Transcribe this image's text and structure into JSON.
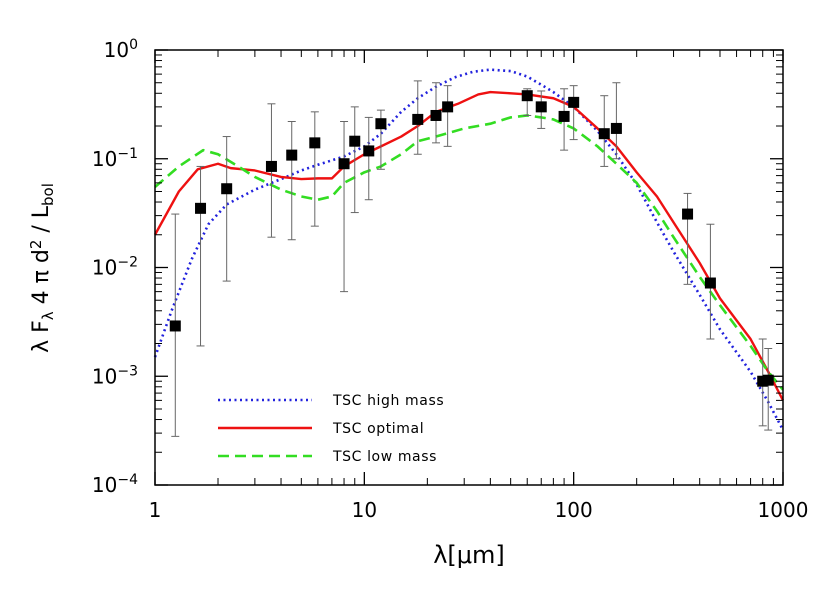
{
  "chart_data": {
    "type": "line",
    "xscale": "log",
    "yscale": "log",
    "xlim": [
      1,
      1000
    ],
    "ylim": [
      0.0001,
      1
    ],
    "xlabel": "λ[μm]",
    "ylabel": "λ F_λ 4 π d² / L_bol",
    "xticks": [
      {
        "value": 1,
        "label": "1"
      },
      {
        "value": 10,
        "label": "10"
      },
      {
        "value": 100,
        "label": "100"
      },
      {
        "value": 1000,
        "label": "1000"
      }
    ],
    "yticks": [
      {
        "value": 0.0001,
        "base": "10",
        "exp": "−4"
      },
      {
        "value": 0.001,
        "base": "10",
        "exp": "−3"
      },
      {
        "value": 0.01,
        "base": "10",
        "exp": "−2"
      },
      {
        "value": 0.1,
        "base": "10",
        "exp": "−1"
      },
      {
        "value": 1,
        "base": "10",
        "exp": "0"
      }
    ],
    "legend_position": "bottom-left",
    "series": [
      {
        "name": "TSC high mass",
        "color": "#2222dd",
        "style": "dotted",
        "points": [
          [
            1,
            0.0015
          ],
          [
            1.2,
            0.004
          ],
          [
            1.5,
            0.012
          ],
          [
            1.8,
            0.025
          ],
          [
            2.2,
            0.038
          ],
          [
            3,
            0.052
          ],
          [
            4,
            0.065
          ],
          [
            5,
            0.078
          ],
          [
            6,
            0.088
          ],
          [
            8,
            0.105
          ],
          [
            10,
            0.13
          ],
          [
            12,
            0.17
          ],
          [
            15,
            0.27
          ],
          [
            18,
            0.36
          ],
          [
            22,
            0.46
          ],
          [
            27,
            0.56
          ],
          [
            33,
            0.63
          ],
          [
            40,
            0.66
          ],
          [
            50,
            0.64
          ],
          [
            60,
            0.57
          ],
          [
            70,
            0.48
          ],
          [
            80,
            0.41
          ],
          [
            100,
            0.3
          ],
          [
            130,
            0.18
          ],
          [
            160,
            0.11
          ],
          [
            200,
            0.058
          ],
          [
            250,
            0.026
          ],
          [
            300,
            0.014
          ],
          [
            400,
            0.0056
          ],
          [
            500,
            0.0027
          ],
          [
            700,
            0.0011
          ],
          [
            850,
            0.00058
          ],
          [
            1000,
            0.00032
          ]
        ]
      },
      {
        "name": "TSC optimal",
        "color": "#ee1111",
        "style": "solid",
        "points": [
          [
            1,
            0.02
          ],
          [
            1.3,
            0.05
          ],
          [
            1.6,
            0.08
          ],
          [
            2,
            0.09
          ],
          [
            2.3,
            0.082
          ],
          [
            3,
            0.078
          ],
          [
            4,
            0.068
          ],
          [
            5,
            0.065
          ],
          [
            6,
            0.066
          ],
          [
            7,
            0.066
          ],
          [
            8,
            0.085
          ],
          [
            10,
            0.11
          ],
          [
            12,
            0.13
          ],
          [
            15,
            0.16
          ],
          [
            18,
            0.2
          ],
          [
            22,
            0.27
          ],
          [
            28,
            0.32
          ],
          [
            35,
            0.39
          ],
          [
            40,
            0.41
          ],
          [
            50,
            0.4
          ],
          [
            60,
            0.39
          ],
          [
            80,
            0.36
          ],
          [
            100,
            0.3
          ],
          [
            130,
            0.19
          ],
          [
            160,
            0.13
          ],
          [
            200,
            0.075
          ],
          [
            250,
            0.045
          ],
          [
            300,
            0.026
          ],
          [
            400,
            0.011
          ],
          [
            500,
            0.0052
          ],
          [
            700,
            0.0022
          ],
          [
            850,
            0.0011
          ],
          [
            1000,
            0.0006
          ]
        ]
      },
      {
        "name": "TSC low mass",
        "color": "#33dd22",
        "style": "dashed",
        "points": [
          [
            1,
            0.055
          ],
          [
            1.3,
            0.085
          ],
          [
            1.7,
            0.12
          ],
          [
            2,
            0.11
          ],
          [
            2.5,
            0.085
          ],
          [
            3,
            0.068
          ],
          [
            4,
            0.052
          ],
          [
            5,
            0.045
          ],
          [
            6,
            0.042
          ],
          [
            7,
            0.045
          ],
          [
            8,
            0.06
          ],
          [
            10,
            0.075
          ],
          [
            12,
            0.085
          ],
          [
            15,
            0.11
          ],
          [
            18,
            0.145
          ],
          [
            22,
            0.16
          ],
          [
            30,
            0.19
          ],
          [
            40,
            0.21
          ],
          [
            50,
            0.24
          ],
          [
            60,
            0.25
          ],
          [
            70,
            0.24
          ],
          [
            80,
            0.23
          ],
          [
            100,
            0.19
          ],
          [
            130,
            0.13
          ],
          [
            160,
            0.09
          ],
          [
            200,
            0.06
          ],
          [
            250,
            0.033
          ],
          [
            300,
            0.019
          ],
          [
            400,
            0.0082
          ],
          [
            500,
            0.0045
          ],
          [
            700,
            0.0019
          ],
          [
            850,
            0.0011
          ],
          [
            1000,
            0.00075
          ]
        ]
      }
    ],
    "observations": [
      {
        "x": 1.25,
        "y": 0.0029,
        "ylo": 0.00028,
        "yhi": 0.031
      },
      {
        "x": 1.65,
        "y": 0.035,
        "ylo": 0.0019,
        "yhi": 0.085
      },
      {
        "x": 2.2,
        "y": 0.053,
        "ylo": 0.0075,
        "yhi": 0.16
      },
      {
        "x": 3.6,
        "y": 0.085,
        "ylo": 0.019,
        "yhi": 0.32
      },
      {
        "x": 4.5,
        "y": 0.108,
        "ylo": 0.018,
        "yhi": 0.22
      },
      {
        "x": 5.8,
        "y": 0.14,
        "ylo": 0.024,
        "yhi": 0.27
      },
      {
        "x": 8,
        "y": 0.09,
        "ylo": 0.006,
        "yhi": 0.22
      },
      {
        "x": 9,
        "y": 0.145,
        "ylo": 0.032,
        "yhi": 0.3
      },
      {
        "x": 10.5,
        "y": 0.118,
        "ylo": 0.042,
        "yhi": 0.24
      },
      {
        "x": 12,
        "y": 0.21,
        "ylo": 0.08,
        "yhi": 0.28
      },
      {
        "x": 18,
        "y": 0.23,
        "ylo": 0.11,
        "yhi": 0.52
      },
      {
        "x": 22,
        "y": 0.25,
        "ylo": 0.14,
        "yhi": 0.5
      },
      {
        "x": 25,
        "y": 0.3,
        "ylo": 0.13,
        "yhi": 0.47
      },
      {
        "x": 60,
        "y": 0.38,
        "ylo": 0.25,
        "yhi": 0.44
      },
      {
        "x": 70,
        "y": 0.3,
        "ylo": 0.19,
        "yhi": 0.42
      },
      {
        "x": 90,
        "y": 0.245,
        "ylo": 0.12,
        "yhi": 0.44
      },
      {
        "x": 100,
        "y": 0.33,
        "ylo": 0.15,
        "yhi": 0.47
      },
      {
        "x": 140,
        "y": 0.17,
        "ylo": 0.085,
        "yhi": 0.38
      },
      {
        "x": 160,
        "y": 0.19,
        "ylo": 0.1,
        "yhi": 0.5
      },
      {
        "x": 350,
        "y": 0.031,
        "ylo": 0.007,
        "yhi": 0.048
      },
      {
        "x": 450,
        "y": 0.0072,
        "ylo": 0.0022,
        "yhi": 0.025
      },
      {
        "x": 800,
        "y": 0.0009,
        "ylo": 0.00035,
        "yhi": 0.0022
      },
      {
        "x": 850,
        "y": 0.00092,
        "ylo": 0.00032,
        "yhi": 0.0018
      }
    ]
  }
}
